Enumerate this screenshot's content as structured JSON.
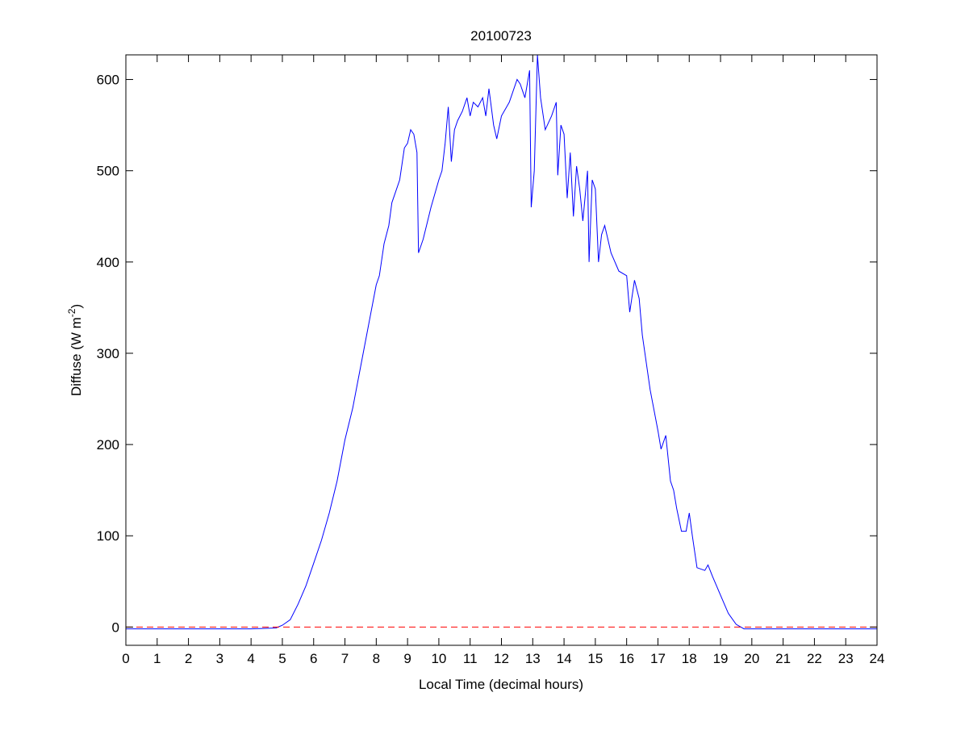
{
  "chart_data": {
    "type": "line",
    "title": "20100723",
    "xlabel": "Local Time (decimal hours)",
    "ylabel_main": "Diffuse (W m",
    "ylabel_sup": "-2",
    "ylabel_end": ")",
    "xlim": [
      0,
      24
    ],
    "ylim": [
      -20,
      627
    ],
    "xticks": [
      0,
      1,
      2,
      3,
      4,
      5,
      6,
      7,
      8,
      9,
      10,
      11,
      12,
      13,
      14,
      15,
      16,
      17,
      18,
      19,
      20,
      21,
      22,
      23,
      24
    ],
    "yticks": [
      0,
      100,
      200,
      300,
      400,
      500,
      600
    ],
    "grid": false,
    "series": [
      {
        "name": "Diffuse",
        "color": "#0000ff",
        "style": "solid",
        "x": [
          0,
          1,
          2,
          3,
          4,
          4.8,
          5,
          5.25,
          5.5,
          5.75,
          6,
          6.25,
          6.5,
          6.75,
          7,
          7.25,
          7.5,
          7.75,
          8,
          8.1,
          8.25,
          8.4,
          8.5,
          8.75,
          8.9,
          9,
          9.1,
          9.2,
          9.3,
          9.35,
          9.5,
          9.75,
          10,
          10.1,
          10.2,
          10.3,
          10.4,
          10.5,
          10.6,
          10.75,
          10.9,
          11,
          11.1,
          11.25,
          11.4,
          11.5,
          11.6,
          11.75,
          11.85,
          12,
          12.25,
          12.5,
          12.6,
          12.75,
          12.9,
          12.95,
          13.05,
          13.15,
          13.25,
          13.4,
          13.6,
          13.75,
          13.8,
          13.9,
          14,
          14.1,
          14.2,
          14.3,
          14.4,
          14.5,
          14.6,
          14.75,
          14.8,
          14.9,
          15,
          15.1,
          15.2,
          15.3,
          15.5,
          15.75,
          16,
          16.1,
          16.25,
          16.4,
          16.5,
          16.75,
          17,
          17.1,
          17.25,
          17.4,
          17.5,
          17.6,
          17.75,
          17.9,
          18,
          18.1,
          18.25,
          18.5,
          18.6,
          18.75,
          19,
          19.25,
          19.5,
          19.75,
          20,
          21,
          22,
          23,
          24
        ],
        "y": [
          -2,
          -2,
          -2,
          -2,
          -2,
          -1,
          2,
          8,
          25,
          45,
          70,
          95,
          125,
          160,
          205,
          240,
          285,
          330,
          375,
          385,
          420,
          440,
          465,
          490,
          525,
          530,
          545,
          540,
          520,
          410,
          425,
          460,
          490,
          500,
          530,
          570,
          510,
          545,
          555,
          565,
          580,
          560,
          575,
          570,
          580,
          560,
          590,
          550,
          535,
          560,
          575,
          600,
          595,
          580,
          610,
          460,
          500,
          627,
          580,
          545,
          560,
          575,
          495,
          550,
          540,
          470,
          520,
          450,
          505,
          480,
          445,
          500,
          400,
          490,
          480,
          400,
          430,
          440,
          410,
          390,
          385,
          345,
          380,
          360,
          320,
          260,
          215,
          195,
          210,
          160,
          150,
          130,
          105,
          105,
          125,
          100,
          65,
          62,
          68,
          55,
          35,
          15,
          3,
          -2,
          -2,
          -2,
          -2,
          -2,
          -2
        ]
      },
      {
        "name": "Zero reference",
        "color": "#ff0000",
        "style": "dashed",
        "x": [
          0,
          24
        ],
        "y": [
          0,
          0
        ]
      }
    ]
  }
}
